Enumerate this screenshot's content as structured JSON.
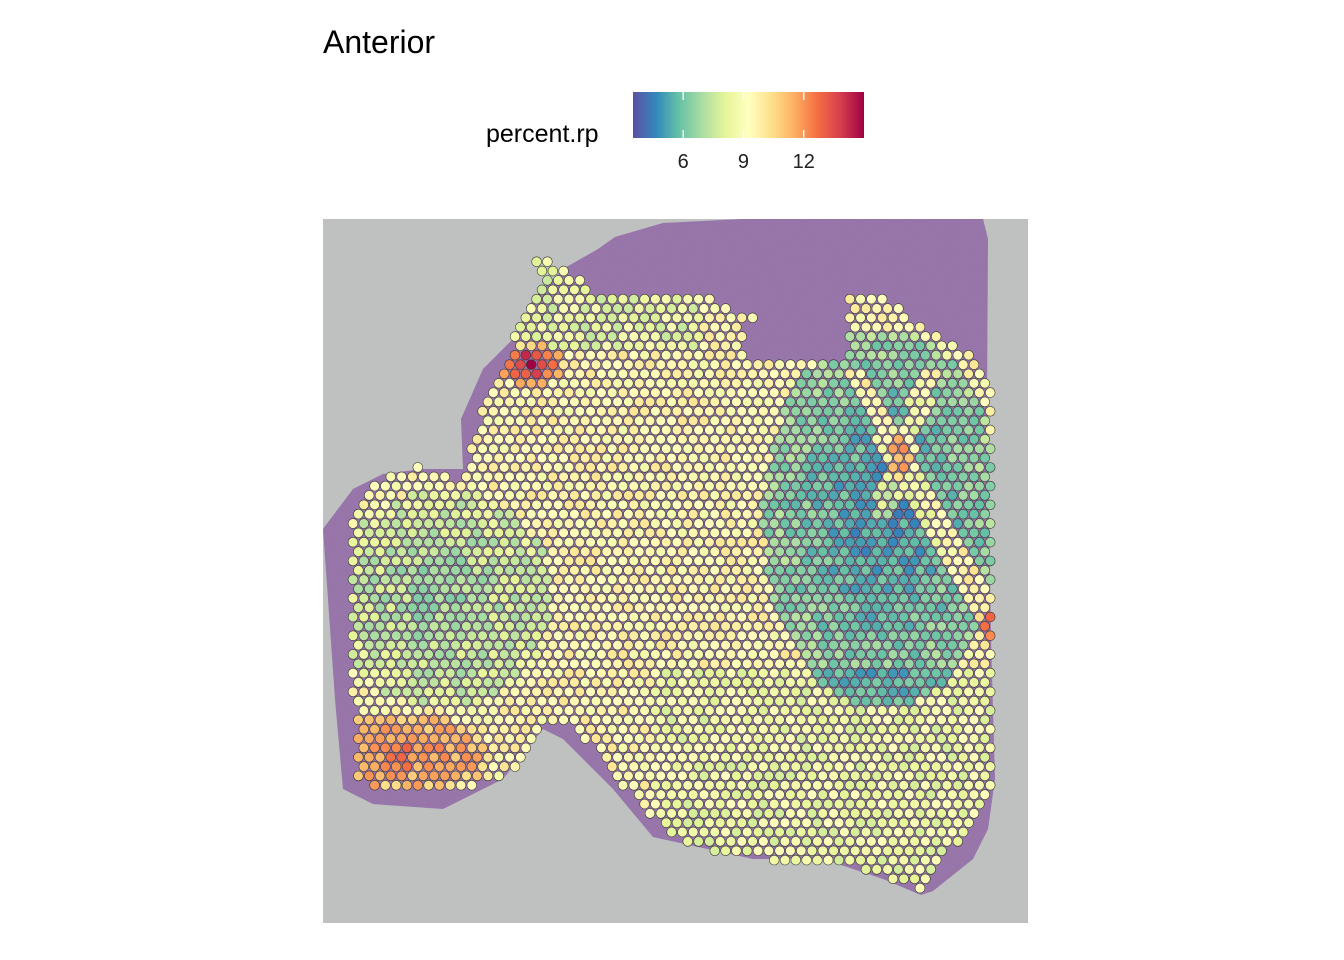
{
  "chart_data": {
    "type": "scatter",
    "subtype": "spatial-feature-plot",
    "title": "Anterior",
    "legend": {
      "title": "percent.rp",
      "placement": "top",
      "ticks": [
        6,
        9,
        12
      ],
      "tick_labels": [
        "6",
        "9",
        "12"
      ],
      "range": [
        3.5,
        15.0
      ],
      "palette": [
        "#5E4FA2",
        "#3288BD",
        "#66C2A5",
        "#ABDDA4",
        "#E6F598",
        "#FFFFBF",
        "#FEE08B",
        "#FDAE61",
        "#F46D43",
        "#D53E4F",
        "#9E0142"
      ]
    },
    "value_regions": [
      {
        "region": "olfactory-bulb-upper",
        "typical_value": 7.5
      },
      {
        "region": "olfactory-bulb-hotspot",
        "typical_value": 13.5
      },
      {
        "region": "left-lobe",
        "typical_value": 7.0
      },
      {
        "region": "left-lobe-lower",
        "typical_value": 10.5
      },
      {
        "region": "cortex-center",
        "typical_value": 9.3
      },
      {
        "region": "striatum-right",
        "typical_value": 5.0
      },
      {
        "region": "lower-cortex",
        "typical_value": 8.5
      }
    ],
    "xlabel": "",
    "ylabel": "",
    "grid": false
  },
  "colors": {
    "background_tissue_gray": "#BFC1C1",
    "tissue_purple": "#8F6AA3",
    "spot_outline": "#333333"
  }
}
